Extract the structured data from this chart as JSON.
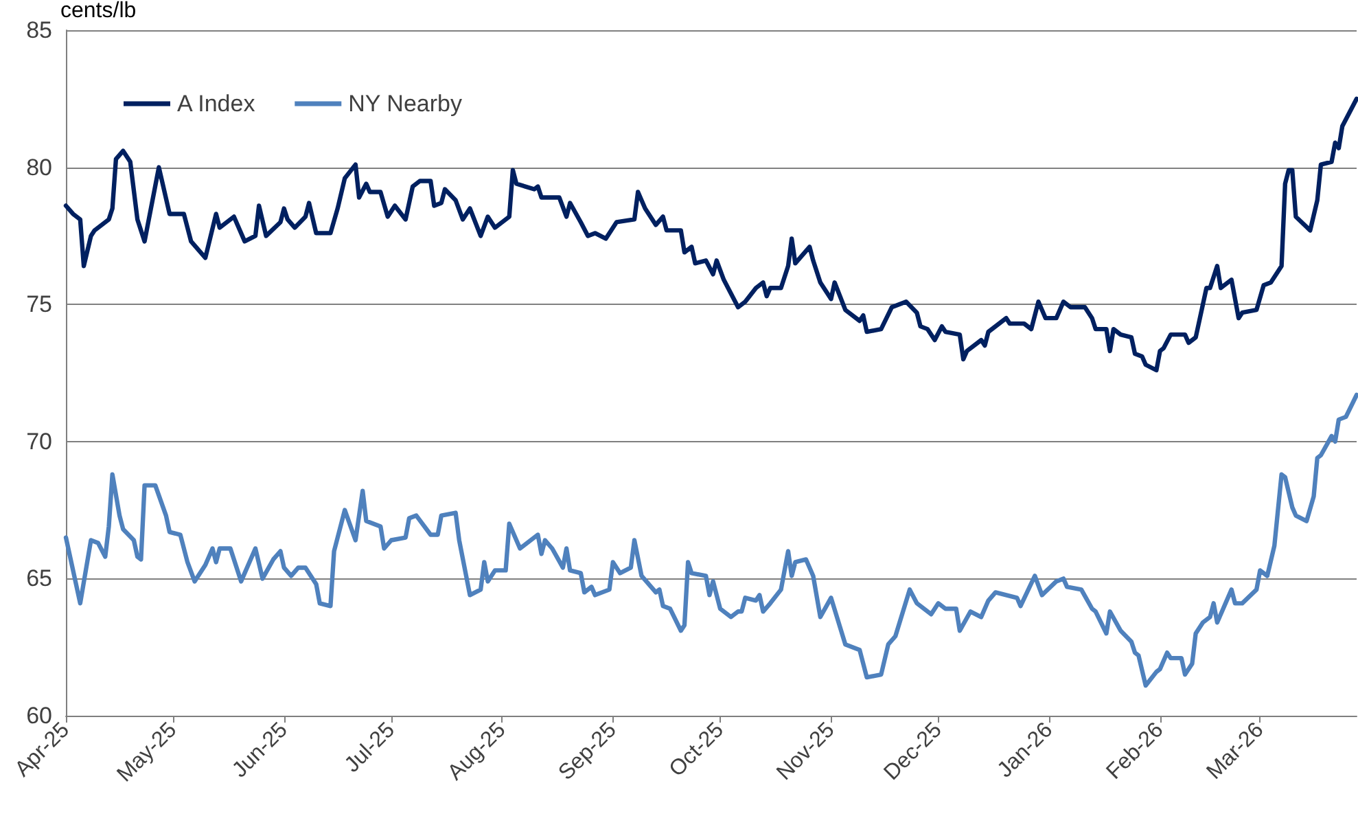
{
  "chart_data": {
    "type": "line",
    "ylabel": "cents/lb",
    "xlim": [
      "2025-04-01",
      "2026-03-28"
    ],
    "xticks": [
      {
        "value": "2025-04-01",
        "label": "Apr-25"
      },
      {
        "value": "2025-05-01",
        "label": "May-25"
      },
      {
        "value": "2025-06-01",
        "label": "Jun-25"
      },
      {
        "value": "2025-07-01",
        "label": "Jul-25"
      },
      {
        "value": "2025-08-01",
        "label": "Aug-25"
      },
      {
        "value": "2025-09-01",
        "label": "Sep-25"
      },
      {
        "value": "2025-10-01",
        "label": "Oct-25"
      },
      {
        "value": "2025-11-01",
        "label": "Nov-25"
      },
      {
        "value": "2025-12-01",
        "label": "Dec-25"
      },
      {
        "value": "2026-01-01",
        "label": "Jan-26"
      },
      {
        "value": "2026-02-01",
        "label": "Feb-26"
      },
      {
        "value": "2026-03-01",
        "label": "Mar-26"
      }
    ],
    "ylim": [
      60,
      85
    ],
    "yticks": [
      60,
      65,
      70,
      75,
      80,
      85
    ],
    "grid": "y",
    "legend": "top left",
    "marker": "none",
    "line_style": "solid",
    "series": [
      {
        "name": "A Index",
        "color": "#002060",
        "x": [
          "2025-04-01",
          "2025-04-03",
          "2025-04-05",
          "2025-04-06",
          "2025-04-08",
          "2025-04-09",
          "2025-04-13",
          "2025-04-14",
          "2025-04-15",
          "2025-04-17",
          "2025-04-19",
          "2025-04-21",
          "2025-04-23",
          "2025-04-27",
          "2025-04-30",
          "2025-05-04",
          "2025-05-06",
          "2025-05-10",
          "2025-05-13",
          "2025-05-14",
          "2025-05-18",
          "2025-05-21",
          "2025-05-24",
          "2025-05-25",
          "2025-05-27",
          "2025-05-31",
          "2025-06-01",
          "2025-06-02",
          "2025-06-04",
          "2025-06-07",
          "2025-06-08",
          "2025-06-10",
          "2025-06-14",
          "2025-06-16",
          "2025-06-18",
          "2025-06-21",
          "2025-06-22",
          "2025-06-24",
          "2025-06-25",
          "2025-06-28",
          "2025-06-30",
          "2025-07-02",
          "2025-07-05",
          "2025-07-07",
          "2025-07-09",
          "2025-07-12",
          "2025-07-13",
          "2025-07-15",
          "2025-07-16",
          "2025-07-19",
          "2025-07-21",
          "2025-07-23",
          "2025-07-26",
          "2025-07-28",
          "2025-07-30",
          "2025-08-02",
          "2025-08-03",
          "2025-08-04",
          "2025-08-05",
          "2025-08-10",
          "2025-08-11",
          "2025-08-12",
          "2025-08-17",
          "2025-08-19",
          "2025-08-20",
          "2025-08-23",
          "2025-08-25",
          "2025-08-27",
          "2025-08-30",
          "2025-09-02",
          "2025-09-07",
          "2025-09-08",
          "2025-09-10",
          "2025-09-13",
          "2025-09-15",
          "2025-09-16",
          "2025-09-20",
          "2025-09-21",
          "2025-09-23",
          "2025-09-24",
          "2025-09-27",
          "2025-09-29",
          "2025-09-30",
          "2025-10-02",
          "2025-10-06",
          "2025-10-08",
          "2025-10-11",
          "2025-10-13",
          "2025-10-14",
          "2025-10-15",
          "2025-10-18",
          "2025-10-20",
          "2025-10-21",
          "2025-10-22",
          "2025-10-26",
          "2025-10-27",
          "2025-10-29",
          "2025-11-01",
          "2025-11-02",
          "2025-11-05",
          "2025-11-09",
          "2025-11-10",
          "2025-11-11",
          "2025-11-15",
          "2025-11-18",
          "2025-11-22",
          "2025-11-25",
          "2025-11-26",
          "2025-11-28",
          "2025-11-30",
          "2025-12-02",
          "2025-12-03",
          "2025-12-07",
          "2025-12-08",
          "2025-12-09",
          "2025-12-13",
          "2025-12-14",
          "2025-12-15",
          "2025-12-20",
          "2025-12-21",
          "2025-12-25",
          "2025-12-27",
          "2025-12-29",
          "2025-12-31",
          "2026-01-03",
          "2026-01-05",
          "2026-01-07",
          "2026-01-11",
          "2026-01-13",
          "2026-01-14",
          "2026-01-17",
          "2026-01-18",
          "2026-01-19",
          "2026-01-21",
          "2026-01-24",
          "2026-01-25",
          "2026-01-27",
          "2026-01-28",
          "2026-01-31",
          "2026-02-01",
          "2026-02-02",
          "2026-02-04",
          "2026-02-08",
          "2026-02-09",
          "2026-02-11",
          "2026-02-14",
          "2026-02-15",
          "2026-02-17",
          "2026-02-18",
          "2026-02-21",
          "2026-02-23",
          "2026-02-24",
          "2026-02-28",
          "2026-03-02",
          "2026-03-04",
          "2026-03-07",
          "2026-03-08",
          "2026-03-09",
          "2026-03-10",
          "2026-03-11",
          "2026-03-15",
          "2026-03-17",
          "2026-03-18",
          "2026-03-21",
          "2026-03-22",
          "2026-03-23",
          "2026-03-24",
          "2026-03-28"
        ],
        "values": [
          78.6,
          78.3,
          78.1,
          76.4,
          77.5,
          77.7,
          78.1,
          78.5,
          80.3,
          80.6,
          80.2,
          78.1,
          77.3,
          80.0,
          78.3,
          78.3,
          77.3,
          76.7,
          78.3,
          77.8,
          78.2,
          77.3,
          77.5,
          78.6,
          77.5,
          78.0,
          78.5,
          78.1,
          77.8,
          78.2,
          78.7,
          77.6,
          77.6,
          78.5,
          79.6,
          80.1,
          78.9,
          79.4,
          79.1,
          79.1,
          78.2,
          78.6,
          78.1,
          79.3,
          79.5,
          79.5,
          78.6,
          78.7,
          79.2,
          78.8,
          78.1,
          78.5,
          77.5,
          78.2,
          77.8,
          78.1,
          78.2,
          79.9,
          79.4,
          79.2,
          79.3,
          78.9,
          78.9,
          78.2,
          78.7,
          78.0,
          77.5,
          77.6,
          77.4,
          78.0,
          78.1,
          79.1,
          78.5,
          77.9,
          78.2,
          77.7,
          77.7,
          76.9,
          77.1,
          76.5,
          76.6,
          76.1,
          76.6,
          75.9,
          74.9,
          75.1,
          75.6,
          75.8,
          75.3,
          75.6,
          75.6,
          76.4,
          77.4,
          76.5,
          77.1,
          76.6,
          75.8,
          75.2,
          75.8,
          74.8,
          74.4,
          74.6,
          74.0,
          74.1,
          74.9,
          75.1,
          74.7,
          74.2,
          74.1,
          73.7,
          74.2,
          74.0,
          73.9,
          73.0,
          73.3,
          73.7,
          73.5,
          74.0,
          74.5,
          74.3,
          74.3,
          74.1,
          75.1,
          74.5,
          74.5,
          75.1,
          74.9,
          74.9,
          74.5,
          74.1,
          74.1,
          73.3,
          74.1,
          73.9,
          73.8,
          73.2,
          73.1,
          72.8,
          72.6,
          73.3,
          73.4,
          73.9,
          73.9,
          73.6,
          73.8,
          75.6,
          75.6,
          76.4,
          75.6,
          75.9,
          74.5,
          74.7,
          74.8,
          75.7,
          75.8,
          76.4,
          79.4,
          79.9,
          79.9,
          78.2,
          77.7,
          78.8,
          80.1,
          80.2,
          80.9,
          80.7,
          81.5,
          82.5
        ]
      },
      {
        "name": "NY Nearby",
        "color": "#4f81bd",
        "x": [
          "2025-04-01",
          "2025-04-05",
          "2025-04-08",
          "2025-04-10",
          "2025-04-12",
          "2025-04-13",
          "2025-04-14",
          "2025-04-16",
          "2025-04-17",
          "2025-04-20",
          "2025-04-21",
          "2025-04-22",
          "2025-04-23",
          "2025-04-26",
          "2025-04-29",
          "2025-04-30",
          "2025-05-03",
          "2025-05-05",
          "2025-05-07",
          "2025-05-10",
          "2025-05-12",
          "2025-05-13",
          "2025-05-14",
          "2025-05-17",
          "2025-05-20",
          "2025-05-24",
          "2025-05-26",
          "2025-05-29",
          "2025-05-31",
          "2025-06-01",
          "2025-06-03",
          "2025-06-05",
          "2025-06-07",
          "2025-06-10",
          "2025-06-11",
          "2025-06-14",
          "2025-06-15",
          "2025-06-18",
          "2025-06-21",
          "2025-06-23",
          "2025-06-24",
          "2025-06-28",
          "2025-06-29",
          "2025-07-01",
          "2025-07-05",
          "2025-07-06",
          "2025-07-08",
          "2025-07-12",
          "2025-07-14",
          "2025-07-15",
          "2025-07-19",
          "2025-07-20",
          "2025-07-23",
          "2025-07-26",
          "2025-07-27",
          "2025-07-28",
          "2025-07-30",
          "2025-08-02",
          "2025-08-03",
          "2025-08-06",
          "2025-08-09",
          "2025-08-11",
          "2025-08-12",
          "2025-08-13",
          "2025-08-15",
          "2025-08-18",
          "2025-08-19",
          "2025-08-20",
          "2025-08-23",
          "2025-08-24",
          "2025-08-26",
          "2025-08-27",
          "2025-08-31",
          "2025-09-01",
          "2025-09-03",
          "2025-09-06",
          "2025-09-07",
          "2025-09-09",
          "2025-09-13",
          "2025-09-14",
          "2025-09-15",
          "2025-09-17",
          "2025-09-20",
          "2025-09-21",
          "2025-09-22",
          "2025-09-23",
          "2025-09-27",
          "2025-09-28",
          "2025-09-29",
          "2025-10-01",
          "2025-10-04",
          "2025-10-06",
          "2025-10-07",
          "2025-10-08",
          "2025-10-11",
          "2025-10-12",
          "2025-10-13",
          "2025-10-15",
          "2025-10-18",
          "2025-10-20",
          "2025-10-21",
          "2025-10-22",
          "2025-10-25",
          "2025-10-27",
          "2025-10-29",
          "2025-11-01",
          "2025-11-05",
          "2025-11-09",
          "2025-11-11",
          "2025-11-15",
          "2025-11-17",
          "2025-11-19",
          "2025-11-23",
          "2025-11-25",
          "2025-11-29",
          "2025-12-01",
          "2025-12-03",
          "2025-12-06",
          "2025-12-07",
          "2025-12-10",
          "2025-12-13",
          "2025-12-15",
          "2025-12-17",
          "2025-12-23",
          "2025-12-24",
          "2025-12-28",
          "2025-12-30",
          "2026-01-03",
          "2026-01-05",
          "2026-01-06",
          "2026-01-10",
          "2026-01-13",
          "2026-01-14",
          "2026-01-17",
          "2026-01-18",
          "2026-01-21",
          "2026-01-24",
          "2026-01-25",
          "2026-01-26",
          "2026-01-28",
          "2026-01-31",
          "2026-02-01",
          "2026-02-03",
          "2026-02-04",
          "2026-02-07",
          "2026-02-08",
          "2026-02-10",
          "2026-02-11",
          "2026-02-13",
          "2026-02-15",
          "2026-02-16",
          "2026-02-17",
          "2026-02-21",
          "2026-02-22",
          "2026-02-24",
          "2026-02-28",
          "2026-03-01",
          "2026-03-03",
          "2026-03-05",
          "2026-03-07",
          "2026-03-08",
          "2026-03-10",
          "2026-03-11",
          "2026-03-14",
          "2026-03-16",
          "2026-03-17",
          "2026-03-18",
          "2026-03-21",
          "2026-03-22",
          "2026-03-23",
          "2026-03-25",
          "2026-03-28"
        ],
        "values": [
          66.5,
          64.1,
          66.4,
          66.3,
          65.8,
          66.9,
          68.8,
          67.3,
          66.8,
          66.4,
          65.8,
          65.7,
          68.4,
          68.4,
          67.3,
          66.7,
          66.6,
          65.6,
          64.9,
          65.5,
          66.1,
          65.6,
          66.1,
          66.1,
          64.9,
          66.1,
          65.0,
          65.7,
          66.0,
          65.4,
          65.1,
          65.4,
          65.4,
          64.8,
          64.1,
          64.0,
          66.0,
          67.5,
          66.4,
          68.2,
          67.1,
          66.9,
          66.1,
          66.4,
          66.5,
          67.2,
          67.3,
          66.6,
          66.6,
          67.3,
          67.4,
          66.4,
          64.4,
          64.6,
          65.6,
          64.9,
          65.3,
          65.3,
          67.0,
          66.1,
          66.4,
          66.6,
          65.9,
          66.4,
          66.1,
          65.4,
          66.1,
          65.3,
          65.2,
          64.5,
          64.7,
          64.4,
          64.6,
          65.6,
          65.2,
          65.4,
          66.4,
          65.1,
          64.5,
          64.6,
          64.0,
          63.9,
          63.1,
          63.3,
          65.6,
          65.2,
          65.1,
          64.4,
          64.9,
          63.9,
          63.6,
          63.8,
          63.8,
          64.3,
          64.2,
          64.4,
          63.8,
          64.1,
          64.6,
          66.0,
          65.1,
          65.6,
          65.7,
          65.1,
          63.6,
          64.3,
          62.6,
          62.4,
          61.4,
          61.5,
          62.6,
          62.9,
          64.6,
          64.1,
          63.7,
          64.1,
          63.9,
          63.9,
          63.1,
          63.8,
          63.6,
          64.2,
          64.5,
          64.3,
          64.0,
          65.1,
          64.4,
          64.9,
          65.0,
          64.7,
          64.6,
          63.9,
          63.8,
          63.0,
          63.8,
          63.1,
          62.7,
          62.3,
          62.2,
          61.1,
          61.6,
          61.7,
          62.3,
          62.1,
          62.1,
          61.5,
          61.9,
          63.0,
          63.4,
          63.6,
          64.1,
          63.4,
          64.6,
          64.1,
          64.1,
          64.6,
          65.3,
          65.1,
          66.2,
          68.8,
          68.7,
          67.6,
          67.3,
          67.1,
          68.0,
          69.4,
          69.5,
          70.2,
          70.0,
          70.8,
          70.9,
          71.7
        ]
      }
    ]
  }
}
